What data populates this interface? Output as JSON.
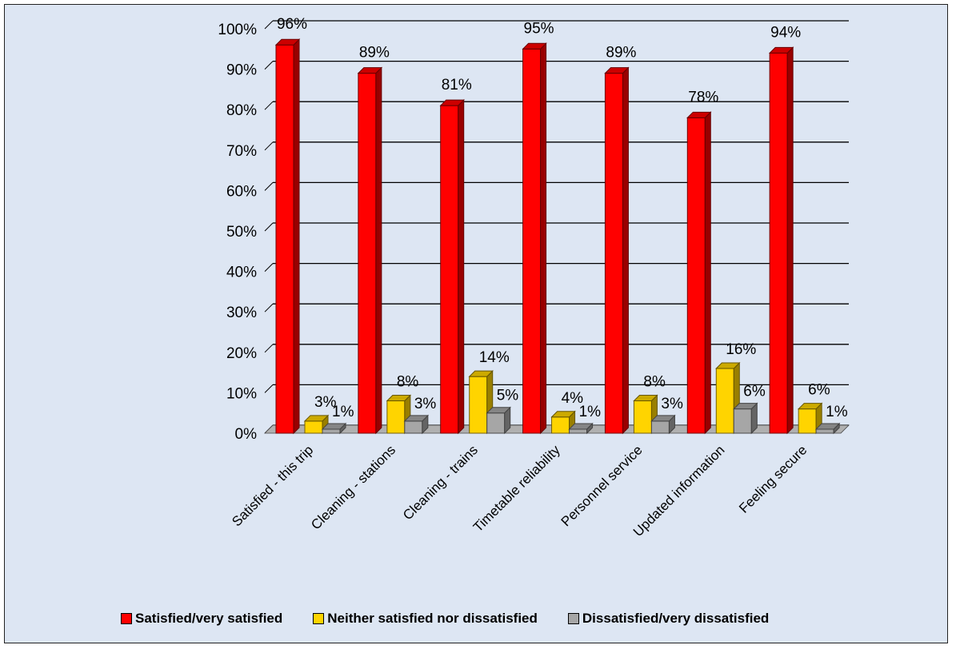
{
  "chart_data": {
    "type": "bar",
    "categories": [
      "Satisfied - this trip",
      "Cleaning - stations",
      "Cleaning - trains",
      "Timetable reliability",
      "Personnel service",
      "Updated information",
      "Feeling secure"
    ],
    "series": [
      {
        "name": "Satisfied/very satisfied",
        "color": "#ff0000",
        "values": [
          96,
          89,
          81,
          95,
          89,
          78,
          94
        ]
      },
      {
        "name": "Neither satisfied nor dissatisfied",
        "color": "#ffd400",
        "values": [
          3,
          8,
          14,
          4,
          8,
          16,
          6
        ]
      },
      {
        "name": "Dissatisfied/very dissatisfied",
        "color": "#a6a6a6",
        "values": [
          1,
          3,
          5,
          1,
          3,
          6,
          1
        ]
      }
    ],
    "data_labels": [
      [
        "96%",
        "89%",
        "81%",
        "95%",
        "89%",
        "78%",
        "94%"
      ],
      [
        "3%",
        "8%",
        "14%",
        "4%",
        "8%",
        "16%",
        "6%"
      ],
      [
        "1%",
        "3%",
        "5%",
        "1%",
        "3%",
        "6%",
        "1%"
      ]
    ],
    "yticks": [
      "0%",
      "10%",
      "20%",
      "30%",
      "40%",
      "50%",
      "60%",
      "70%",
      "80%",
      "90%",
      "100%"
    ],
    "ylim": [
      0,
      100
    ],
    "title": "",
    "xlabel": "",
    "ylabel": "",
    "grid": true,
    "legend_position": "bottom",
    "style": "3d-bar"
  }
}
